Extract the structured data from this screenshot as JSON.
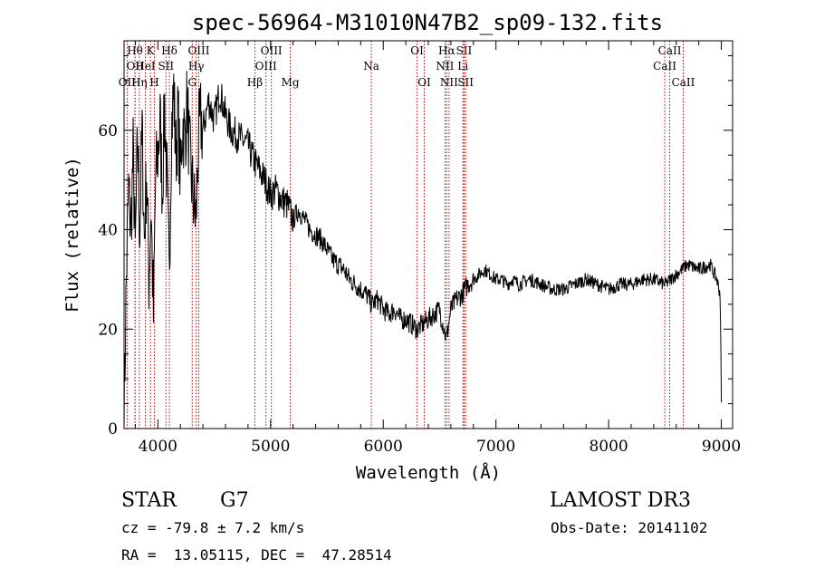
{
  "colors": {
    "spectrum": "#000000",
    "marker": "#c00000",
    "axis": "#000000"
  },
  "chart_data": {
    "type": "line",
    "title": "spec-56964-M31010N47B2_sp09-132.fits",
    "xlabel": "Wavelength (Å)",
    "ylabel": "Flux (relative)",
    "xlim": [
      3700,
      9100
    ],
    "ylim": [
      0,
      78
    ],
    "x_ticks": [
      4000,
      5000,
      6000,
      7000,
      8000,
      9000
    ],
    "y_ticks": [
      0,
      20,
      40,
      60
    ],
    "x_minor_step": 200,
    "y_minor_step": 5,
    "series": [
      {
        "name": "flux",
        "points": [
          [
            3700,
            2
          ],
          [
            3720,
            30
          ],
          [
            3740,
            48
          ],
          [
            3760,
            40
          ],
          [
            3780,
            55
          ],
          [
            3800,
            35
          ],
          [
            3820,
            58
          ],
          [
            3840,
            40
          ],
          [
            3860,
            60
          ],
          [
            3880,
            38
          ],
          [
            3900,
            52
          ],
          [
            3920,
            30
          ],
          [
            3940,
            45
          ],
          [
            3960,
            22
          ],
          [
            3980,
            50
          ],
          [
            4000,
            55
          ],
          [
            4020,
            62
          ],
          [
            4040,
            48
          ],
          [
            4060,
            65
          ],
          [
            4080,
            50
          ],
          [
            4100,
            30
          ],
          [
            4120,
            60
          ],
          [
            4140,
            68
          ],
          [
            4160,
            55
          ],
          [
            4180,
            63
          ],
          [
            4200,
            50
          ],
          [
            4220,
            62
          ],
          [
            4240,
            58
          ],
          [
            4260,
            66
          ],
          [
            4280,
            55
          ],
          [
            4300,
            50
          ],
          [
            4320,
            45
          ],
          [
            4340,
            42
          ],
          [
            4360,
            58
          ],
          [
            4380,
            62
          ],
          [
            4400,
            60
          ],
          [
            4450,
            66
          ],
          [
            4500,
            62
          ],
          [
            4550,
            68
          ],
          [
            4600,
            63
          ],
          [
            4650,
            60
          ],
          [
            4700,
            59
          ],
          [
            4750,
            58
          ],
          [
            4800,
            57
          ],
          [
            4850,
            54
          ],
          [
            4900,
            52
          ],
          [
            4950,
            50
          ],
          [
            5000,
            47
          ],
          [
            5050,
            48
          ],
          [
            5100,
            46
          ],
          [
            5150,
            45
          ],
          [
            5200,
            42
          ],
          [
            5250,
            44
          ],
          [
            5300,
            42
          ],
          [
            5350,
            40
          ],
          [
            5400,
            39
          ],
          [
            5450,
            38
          ],
          [
            5500,
            36
          ],
          [
            5550,
            34
          ],
          [
            5600,
            33
          ],
          [
            5650,
            32
          ],
          [
            5700,
            30
          ],
          [
            5750,
            29
          ],
          [
            5800,
            28
          ],
          [
            5850,
            27
          ],
          [
            5900,
            25
          ],
          [
            5950,
            26
          ],
          [
            6000,
            24
          ],
          [
            6050,
            23
          ],
          [
            6100,
            24
          ],
          [
            6150,
            22
          ],
          [
            6200,
            22
          ],
          [
            6250,
            21
          ],
          [
            6300,
            20
          ],
          [
            6350,
            21
          ],
          [
            6400,
            22
          ],
          [
            6450,
            23
          ],
          [
            6500,
            24
          ],
          [
            6560,
            18
          ],
          [
            6600,
            24
          ],
          [
            6650,
            26
          ],
          [
            6700,
            27
          ],
          [
            6750,
            29
          ],
          [
            6800,
            30
          ],
          [
            6850,
            31
          ],
          [
            6900,
            32
          ],
          [
            6950,
            31
          ],
          [
            7000,
            30
          ],
          [
            7050,
            30
          ],
          [
            7100,
            29
          ],
          [
            7150,
            30
          ],
          [
            7200,
            29
          ],
          [
            7300,
            30
          ],
          [
            7400,
            29
          ],
          [
            7500,
            28
          ],
          [
            7600,
            28
          ],
          [
            7700,
            29
          ],
          [
            7800,
            30
          ],
          [
            7900,
            29
          ],
          [
            8000,
            28
          ],
          [
            8100,
            29
          ],
          [
            8200,
            29
          ],
          [
            8300,
            30
          ],
          [
            8400,
            30
          ],
          [
            8500,
            29
          ],
          [
            8600,
            31
          ],
          [
            8700,
            33
          ],
          [
            8800,
            32
          ],
          [
            8900,
            33
          ],
          [
            8960,
            30
          ],
          [
            8990,
            27
          ],
          [
            9000,
            5
          ]
        ]
      }
    ],
    "line_markers": [
      {
        "label": "OII",
        "wavelength": 3727,
        "row": 2
      },
      {
        "label": "Hθ",
        "wavelength": 3797,
        "row": 0
      },
      {
        "label": "OII",
        "wavelength": 3798,
        "row": 1
      },
      {
        "label": "Hη",
        "wavelength": 3835,
        "row": 2
      },
      {
        "label": "K",
        "wavelength": 3934,
        "row": 0
      },
      {
        "label": "HeI",
        "wavelength": 3889,
        "row": 1
      },
      {
        "label": "H",
        "wavelength": 3969,
        "row": 2
      },
      {
        "label": "SII",
        "wavelength": 4072,
        "row": 1
      },
      {
        "label": "Hδ",
        "wavelength": 4102,
        "row": 0
      },
      {
        "label": "OIII",
        "wavelength": 4363,
        "row": 0
      },
      {
        "label": "Hγ",
        "wavelength": 4340,
        "row": 1
      },
      {
        "label": "G",
        "wavelength": 4305,
        "row": 2
      },
      {
        "label": "Hβ",
        "wavelength": 4861,
        "row": 2
      },
      {
        "label": "OIII",
        "wavelength": 5007,
        "row": 0
      },
      {
        "label": "OIII",
        "wavelength": 4959,
        "row": 1
      },
      {
        "label": "Mg",
        "wavelength": 5175,
        "row": 2
      },
      {
        "label": "Na",
        "wavelength": 5894,
        "row": 1
      },
      {
        "label": "OI",
        "wavelength": 6300,
        "row": 0
      },
      {
        "label": "OI",
        "wavelength": 6364,
        "row": 2
      },
      {
        "label": "Hα",
        "wavelength": 6563,
        "row": 0
      },
      {
        "label": "NII",
        "wavelength": 6548,
        "row": 1
      },
      {
        "label": "NII",
        "wavelength": 6584,
        "row": 2
      },
      {
        "label": "SII",
        "wavelength": 6717,
        "row": 0
      },
      {
        "label": "Li",
        "wavelength": 6707,
        "row": 1
      },
      {
        "label": "SII",
        "wavelength": 6731,
        "row": 2
      },
      {
        "label": "CaII",
        "wavelength": 8542,
        "row": 0
      },
      {
        "label": "CaII",
        "wavelength": 8498,
        "row": 1
      },
      {
        "label": "CaII",
        "wavelength": 8662,
        "row": 2
      }
    ]
  },
  "info": {
    "class": "STAR",
    "subclass": "G7",
    "survey": "LAMOST DR3",
    "redshift": "cz = -79.8 ± 7.2 km/s",
    "obs_date": "Obs-Date: 20141102",
    "coords": "RA =  13.05115, DEC =  47.28514"
  }
}
